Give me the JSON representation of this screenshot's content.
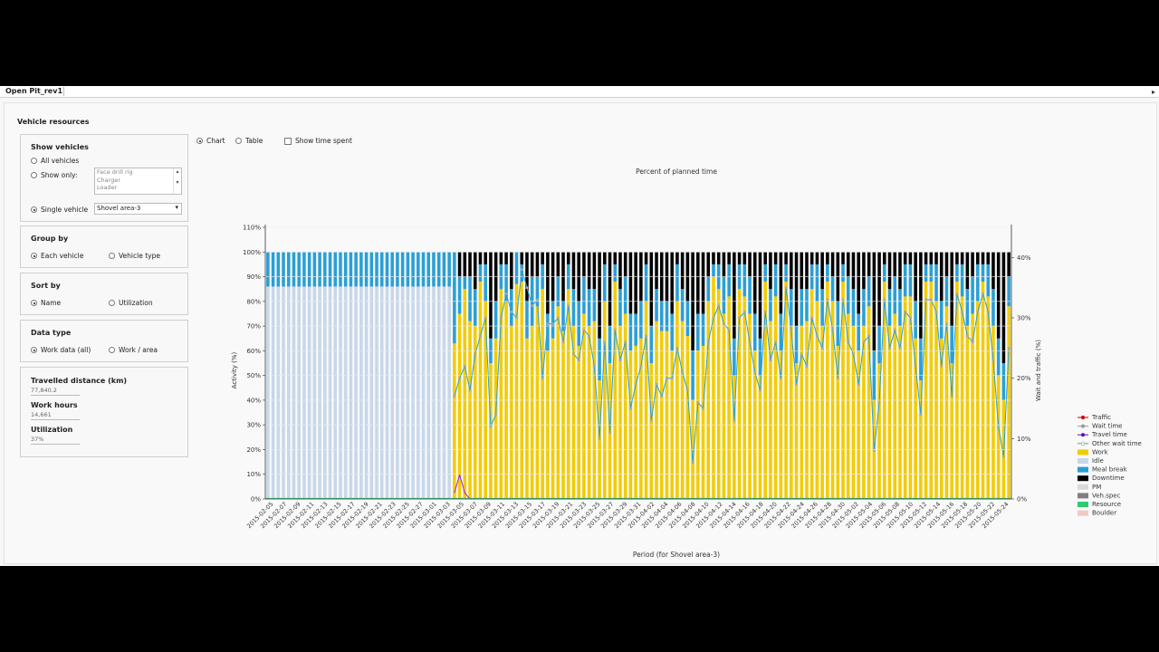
{
  "window": {
    "tab_title": "Open Pit_rev1"
  },
  "section_title": "Vehicle resources",
  "show_vehicles": {
    "title": "Show vehicles",
    "all_label": "All vehicles",
    "show_only_label": "Show only:",
    "list_items": [
      "Face drill rig",
      "Charger",
      "Loader"
    ],
    "single_label": "Single vehicle",
    "single_value": "Shovel area-3",
    "selected": "single"
  },
  "group_by": {
    "title": "Group by",
    "opt1": "Each vehicle",
    "opt2": "Vehicle type"
  },
  "sort_by": {
    "title": "Sort by",
    "opt1": "Name",
    "opt2": "Utilization"
  },
  "data_type": {
    "title": "Data type",
    "opt1": "Work data (all)",
    "opt2": "Work / area"
  },
  "stats": {
    "distance_label": "Travelled distance (km)",
    "distance_value": "77,840.2",
    "hours_label": "Work hours",
    "hours_value": "14,661",
    "util_label": "Utilization",
    "util_value": "37%"
  },
  "view": {
    "chart_label": "Chart",
    "table_label": "Table",
    "show_time_label": "Show time spent",
    "selected": "chart"
  },
  "chart_data": {
    "type": "bar",
    "title": "Percent of planned time",
    "xlabel": "Period (for Shovel area-3)",
    "ylabel": "Activity (%)",
    "y2label": "Wait and traffic (%)",
    "yticks": [
      "0%",
      "10%",
      "20%",
      "30%",
      "40%",
      "50%",
      "60%",
      "70%",
      "80%",
      "90%",
      "100%",
      "110%"
    ],
    "y2ticks": [
      "0%",
      "10%",
      "20%",
      "30%",
      "40%"
    ],
    "ylim": [
      0,
      110
    ],
    "y2lim": [
      0,
      45
    ],
    "date_labels": [
      "2015-02-05",
      "2015-02-07",
      "2015-02-09",
      "2015-02-11",
      "2015-02-13",
      "2015-02-15",
      "2015-02-17",
      "2015-02-19",
      "2015-02-21",
      "2015-02-23",
      "2015-02-25",
      "2015-02-27",
      "2015-03-01",
      "2015-03-03",
      "2015-03-05",
      "2015-03-07",
      "2015-03-09",
      "2015-03-11",
      "2015-03-13",
      "2015-03-15",
      "2015-03-17",
      "2015-03-19",
      "2015-03-21",
      "2015-03-23",
      "2015-03-25",
      "2015-03-27",
      "2015-03-29",
      "2015-03-31",
      "2015-04-02",
      "2015-04-04",
      "2015-04-06",
      "2015-04-08",
      "2015-04-10",
      "2015-04-12",
      "2015-04-14",
      "2015-04-16",
      "2015-04-18",
      "2015-04-20",
      "2015-04-22",
      "2015-04-24",
      "2015-04-26",
      "2015-04-28",
      "2015-04-30",
      "2015-05-02",
      "2015-05-04",
      "2015-05-06",
      "2015-05-08",
      "2015-05-10",
      "2015-05-12",
      "2015-05-14",
      "2015-05-16",
      "2015-05-18",
      "2015-05-20",
      "2015-05-22",
      "2015-05-24"
    ],
    "idle_days": 36,
    "idle_pct": 86,
    "mealbreak_pct": 14,
    "work_pct": [
      63,
      75,
      85,
      72,
      70,
      88,
      80,
      55,
      65,
      85,
      80,
      70,
      87,
      88,
      65,
      70,
      78,
      85,
      60,
      65,
      78,
      68,
      85,
      70,
      62,
      75,
      70,
      72,
      48,
      80,
      55,
      88,
      70,
      75,
      60,
      62,
      65,
      80,
      55,
      72,
      68,
      68,
      60,
      80,
      72,
      66,
      40,
      60,
      62,
      80,
      90,
      85,
      75,
      82,
      50,
      85,
      82,
      75,
      60,
      50,
      88,
      72,
      82,
      60,
      88,
      70,
      55,
      70,
      72,
      85,
      80,
      70,
      88,
      80,
      62,
      88,
      75,
      70,
      60,
      70,
      78,
      40,
      55,
      88,
      70,
      75,
      70,
      82,
      82,
      65,
      48,
      88,
      88,
      80,
      65,
      78,
      55,
      88,
      82,
      70,
      75,
      80,
      88,
      82,
      70,
      50,
      40,
      78
    ],
    "downtime_pct": [
      0,
      10,
      10,
      10,
      15,
      5,
      5,
      35,
      20,
      5,
      5,
      15,
      0,
      5,
      20,
      10,
      10,
      5,
      25,
      20,
      10,
      20,
      5,
      15,
      20,
      10,
      15,
      15,
      35,
      5,
      30,
      5,
      15,
      10,
      25,
      25,
      20,
      5,
      30,
      15,
      20,
      20,
      25,
      5,
      15,
      20,
      40,
      25,
      25,
      10,
      5,
      5,
      10,
      5,
      35,
      5,
      5,
      10,
      25,
      35,
      5,
      15,
      5,
      25,
      5,
      15,
      30,
      15,
      15,
      5,
      5,
      15,
      5,
      10,
      20,
      5,
      10,
      15,
      25,
      15,
      10,
      40,
      30,
      5,
      15,
      10,
      15,
      5,
      5,
      20,
      35,
      5,
      5,
      5,
      20,
      10,
      30,
      5,
      5,
      15,
      10,
      5,
      5,
      5,
      15,
      35,
      45,
      10
    ],
    "wait_pct": [
      17,
      20,
      22,
      18,
      24,
      27,
      30,
      12,
      14,
      30,
      34,
      31,
      30,
      38,
      35,
      32,
      33,
      20,
      29,
      29,
      30,
      26,
      32,
      24,
      23,
      28,
      27,
      22,
      10,
      26,
      11,
      28,
      23,
      26,
      15,
      19,
      22,
      27,
      13,
      19,
      17,
      20,
      20,
      25,
      21,
      18,
      6,
      16,
      15,
      26,
      30,
      32,
      29,
      28,
      13,
      30,
      31,
      26,
      21,
      18,
      31,
      23,
      26,
      20,
      35,
      28,
      19,
      24,
      22,
      30,
      27,
      25,
      33,
      28,
      20,
      33,
      26,
      24,
      19,
      26,
      27,
      8,
      16,
      33,
      25,
      28,
      25,
      31,
      30,
      22,
      14,
      33,
      33,
      31,
      22,
      29,
      17,
      34,
      31,
      27,
      26,
      31,
      34,
      31,
      23,
      12,
      7,
      25
    ],
    "traffic_pct": [
      1,
      4,
      1,
      0,
      0,
      0,
      0,
      0,
      0,
      0,
      0,
      0,
      0,
      0,
      0,
      0,
      0,
      0,
      0,
      0,
      0,
      0,
      0,
      0,
      0,
      0,
      0,
      0,
      0,
      0,
      0,
      0,
      0,
      0,
      0,
      0,
      0,
      0,
      0,
      0,
      0,
      0,
      0,
      0,
      0,
      0,
      0,
      0,
      0,
      0,
      0,
      0,
      0,
      0,
      0,
      0,
      0,
      0,
      0,
      0,
      0,
      0,
      0,
      0,
      0,
      0,
      0,
      0,
      0,
      0,
      0,
      0,
      0,
      0,
      0,
      0,
      0,
      0,
      0,
      0,
      0,
      0,
      0,
      0,
      0,
      0,
      0,
      0,
      0,
      0,
      0,
      0,
      0,
      0,
      0,
      0,
      0,
      0,
      0,
      0,
      0,
      0,
      0,
      0,
      0,
      0,
      0,
      0
    ],
    "legend": [
      {
        "name": "Traffic",
        "color": "#cc0000",
        "kind": "line-circle"
      },
      {
        "name": "Wait time",
        "color": "#999999",
        "kind": "line-square"
      },
      {
        "name": "Travel time",
        "color": "#6a0dad",
        "kind": "line-triangle"
      },
      {
        "name": "Other wait time",
        "color": "#7a9a7a",
        "kind": "line-circle-open"
      },
      {
        "name": "Work",
        "color": "#f2cc00",
        "kind": "box"
      },
      {
        "name": "Idle",
        "color": "#c8d7ea",
        "kind": "box"
      },
      {
        "name": "Meal break",
        "color": "#2a9fd6",
        "kind": "box"
      },
      {
        "name": "Downtime",
        "color": "#000000",
        "kind": "box"
      },
      {
        "name": "PM",
        "color": "#d9d9d9",
        "kind": "box"
      },
      {
        "name": "Veh.spec",
        "color": "#808080",
        "kind": "box"
      },
      {
        "name": "Resource",
        "color": "#2ecc71",
        "kind": "box"
      },
      {
        "name": "Boulder",
        "color": "#f4c7c3",
        "kind": "box"
      }
    ]
  }
}
